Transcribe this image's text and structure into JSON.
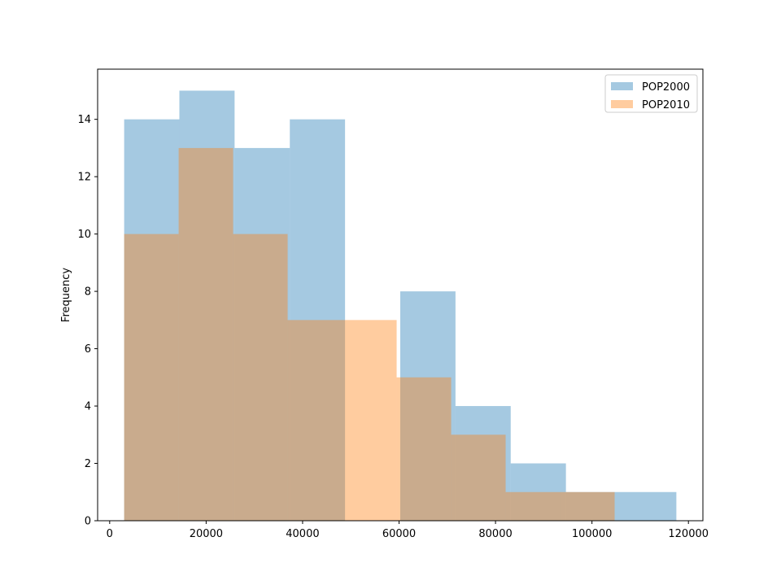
{
  "chart_data": {
    "type": "histogram",
    "title": "",
    "xlabel": "",
    "ylabel": "Frequency",
    "xlim": [
      -2500,
      123000
    ],
    "ylim": [
      0,
      15.75
    ],
    "x_ticks": [
      0,
      20000,
      40000,
      60000,
      80000,
      100000,
      120000
    ],
    "y_ticks": [
      0,
      2,
      4,
      6,
      8,
      10,
      12,
      14
    ],
    "grid": false,
    "legend_position": "upper right",
    "series": [
      {
        "name": "POP2000",
        "color": "#1f77b4",
        "alpha": 0.4,
        "bin_edges": [
          3000,
          14450,
          25900,
          37350,
          48800,
          60250,
          71700,
          83150,
          94600,
          106050,
          117500
        ],
        "values": [
          14,
          15,
          13,
          14,
          0,
          8,
          4,
          2,
          1,
          1
        ]
      },
      {
        "name": "POP2010",
        "color": "#ff7f0e",
        "alpha": 0.4,
        "bin_edges": [
          3000,
          14300,
          25600,
          36900,
          48200,
          59500,
          70800,
          82100,
          93400,
          104700,
          116000
        ],
        "values": [
          10,
          13,
          10,
          7,
          7,
          5,
          3,
          1,
          1,
          0
        ]
      }
    ]
  }
}
